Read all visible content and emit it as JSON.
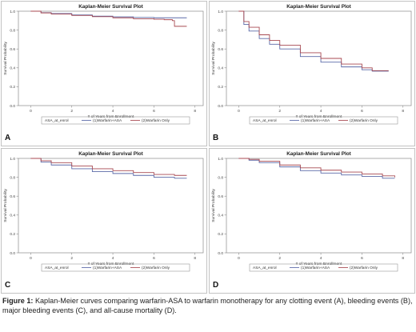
{
  "colors": {
    "warfarin_asa": "#5b6aa8",
    "warfarin_only": "#a84a52",
    "frame": "#8a8a8a",
    "background": "#ffffff"
  },
  "caption": {
    "lead": "Figure 1:",
    "text": "Kaplan-Meier curves comparing warfarin-ASA to warfarin monotherapy for any clotting event (A), bleeding events (B), major bleeding events (C), and all-cause mortality (D)."
  },
  "chart_data": [
    {
      "panel": "A",
      "type": "line",
      "title": "Kaplan-Meier Survival Plot",
      "xlabel": "# of Years from Enrollment",
      "ylabel": "Survival Probability",
      "xlim": [
        -0.6,
        8.4
      ],
      "ylim": [
        0,
        1
      ],
      "xticks": [
        "0",
        "2",
        "4",
        "6",
        "8"
      ],
      "yticks": [
        "0.0",
        "0.2",
        "0.4",
        "0.6",
        "0.8",
        "1.0"
      ],
      "legend_title": "ASA_at_enrol",
      "legend_placement": "bottom",
      "series": [
        {
          "name": "(1)Warfarin+ASA",
          "color": "#5b6aa8",
          "x": [
            0,
            0.5,
            1,
            2,
            3,
            4,
            5,
            6,
            7,
            7.6
          ],
          "values": [
            1.0,
            0.985,
            0.975,
            0.96,
            0.948,
            0.94,
            0.934,
            0.93,
            0.93,
            0.93
          ]
        },
        {
          "name": "(2)Warfarin Only",
          "color": "#a84a52",
          "x": [
            0,
            0.5,
            1,
            2,
            3,
            4,
            5,
            6,
            6.5,
            6.9,
            7.0,
            7.6
          ],
          "values": [
            1.0,
            0.982,
            0.97,
            0.955,
            0.942,
            0.93,
            0.92,
            0.915,
            0.91,
            0.9,
            0.84,
            0.84
          ]
        }
      ]
    },
    {
      "panel": "B",
      "type": "line",
      "title": "Kaplan-Meier Survival Plot",
      "xlabel": "# of Years from Enrollment",
      "ylabel": "Survival Probability",
      "xlim": [
        -0.6,
        8.4
      ],
      "ylim": [
        0,
        1
      ],
      "xticks": [
        "0",
        "2",
        "4",
        "6",
        "8"
      ],
      "yticks": [
        "0.0",
        "0.2",
        "0.4",
        "0.6",
        "0.8",
        "1.0"
      ],
      "legend_title": "ASA_at_enrol",
      "legend_placement": "bottom",
      "series": [
        {
          "name": "(1)Warfarin+ASA",
          "color": "#5b6aa8",
          "x": [
            0,
            0.25,
            0.5,
            1,
            1.5,
            2,
            3,
            4,
            5,
            6,
            6.5,
            7.3
          ],
          "values": [
            1.0,
            0.86,
            0.79,
            0.71,
            0.65,
            0.6,
            0.52,
            0.46,
            0.41,
            0.38,
            0.365,
            0.365
          ]
        },
        {
          "name": "(2)Warfarin Only",
          "color": "#a84a52",
          "x": [
            0,
            0.25,
            0.5,
            1,
            1.5,
            2,
            3,
            4,
            5,
            6,
            6.5,
            7.3
          ],
          "values": [
            1.0,
            0.89,
            0.83,
            0.75,
            0.69,
            0.64,
            0.56,
            0.5,
            0.44,
            0.4,
            0.37,
            0.37
          ]
        }
      ]
    },
    {
      "panel": "C",
      "type": "line",
      "title": "Kaplan-Meier Survival Plot",
      "xlabel": "# of Years from Enrollment",
      "ylabel": "Survival Probability",
      "xlim": [
        -0.6,
        8.4
      ],
      "ylim": [
        0,
        1
      ],
      "xticks": [
        "0",
        "2",
        "4",
        "6",
        "8"
      ],
      "yticks": [
        "0.0",
        "0.2",
        "0.4",
        "0.6",
        "0.8",
        "1.0"
      ],
      "legend_title": "ASA_at_enrol",
      "legend_placement": "bottom",
      "series": [
        {
          "name": "(1)Warfarin+ASA",
          "color": "#5b6aa8",
          "x": [
            0,
            0.5,
            1,
            2,
            3,
            4,
            5,
            6,
            7,
            7.6
          ],
          "values": [
            1.0,
            0.96,
            0.93,
            0.89,
            0.86,
            0.84,
            0.82,
            0.8,
            0.79,
            0.79
          ]
        },
        {
          "name": "(2)Warfarin Only",
          "color": "#a84a52",
          "x": [
            0,
            0.5,
            1,
            2,
            3,
            4,
            5,
            6,
            7,
            7.6
          ],
          "values": [
            1.0,
            0.975,
            0.955,
            0.92,
            0.89,
            0.87,
            0.85,
            0.83,
            0.82,
            0.82
          ]
        }
      ]
    },
    {
      "panel": "D",
      "type": "line",
      "title": "Kaplan-Meier Survival Plot",
      "xlabel": "# of Years from Enrollment",
      "ylabel": "Survival Probability",
      "xlim": [
        -0.6,
        8.4
      ],
      "ylim": [
        0,
        1
      ],
      "xticks": [
        "0",
        "2",
        "4",
        "6",
        "8"
      ],
      "yticks": [
        "0.0",
        "0.2",
        "0.4",
        "0.6",
        "0.8",
        "1.0"
      ],
      "legend_title": "ASA_at_enrol",
      "legend_placement": "bottom",
      "series": [
        {
          "name": "(1)Warfarin+ASA",
          "color": "#5b6aa8",
          "x": [
            0,
            0.5,
            1,
            2,
            3,
            4,
            5,
            6,
            7,
            7.6
          ],
          "values": [
            1.0,
            0.98,
            0.955,
            0.91,
            0.87,
            0.845,
            0.825,
            0.81,
            0.79,
            0.79
          ]
        },
        {
          "name": "(2)Warfarin Only",
          "color": "#a84a52",
          "x": [
            0,
            0.5,
            1,
            2,
            3,
            4,
            5,
            6,
            7,
            7.6
          ],
          "values": [
            1.0,
            0.99,
            0.97,
            0.93,
            0.9,
            0.875,
            0.855,
            0.835,
            0.815,
            0.8
          ]
        }
      ]
    }
  ]
}
